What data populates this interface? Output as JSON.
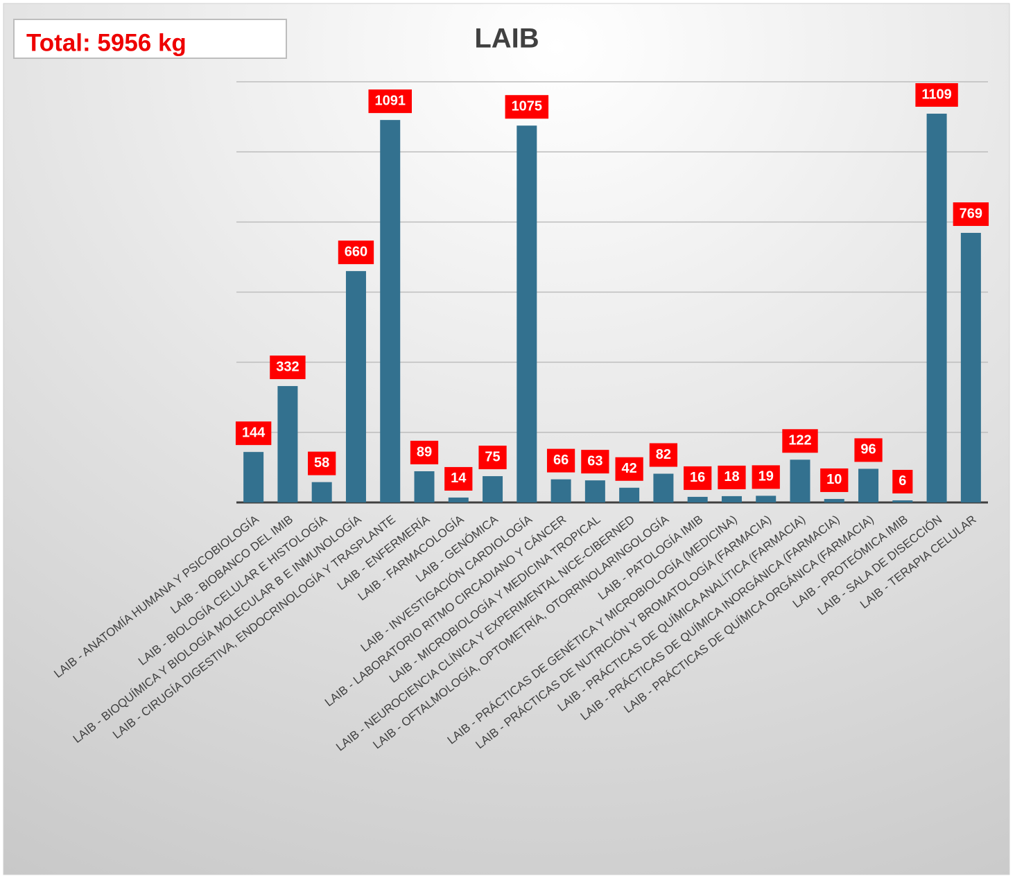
{
  "chart_data": {
    "type": "bar",
    "title": "LAIB",
    "annotation": "Total: 5956 kg",
    "categories": [
      "LAIB - ANATOMÍA HUMANA Y PSICOBIOLOGÍA",
      "LAIB - BIOBANCO DEL IMIB",
      "LAIB - BIOLOGÍA CELULAR E HISTOLOGÍA",
      "LAIB - BIOQUÍMICA Y BIOLOGÍA MOLECULAR B E INMUNOLOGÍA",
      "LAIB - CIRUGÍA DIGESTIVA, ENDOCRINOLOGÍA Y TRASPLANTE",
      "LAIB - ENFERMERÍA",
      "LAIB - FARMACOLOGÍA",
      "LAIB - GENÓMICA",
      "LAIB - INVESTIGACIÓN CARDIOLOGÍA",
      "LAIB - LABORATORIO RITMO CIRCADIANO Y CÁNCER",
      "LAIB - MICROBIOLOGÍA Y MEDICINA TROPICAL",
      "LAIB - NEUROCIENCIA CLÍNICA Y EXPERIMENTAL NICE-CIBERNED",
      "LAIB - OFTALMOLOGÍA, OPTOMETRÍA, OTORRINOLARINGOLOGÍA",
      "LAIB - PATOLOGÍA IMIB",
      "LAIB - PRÁCTICAS DE GENÉTICA Y MICROBIOLOGÍA (MEDICINA)",
      "LAIB - PRÁCTICAS DE NUTRICIÓN Y BROMATOLOGÍA (FARMACIA)",
      "LAIB - PRÁCTICAS DE QUÍMICA ANALÍTICA (FARMACIA)",
      "LAIB - PRÁCTICAS DE QUÍMICA INORGÁNICA (FARMACIA)",
      "LAIB - PRÁCTICAS DE QUÍMICA ORGÁNICA (FARMACIA)",
      "LAIB - PROTEÓMICA IMIB",
      "LAIB - SALA DE DISECCIÓN",
      "LAIB - TERAPIA CELULAR"
    ],
    "values": [
      144,
      332,
      58,
      660,
      1091,
      89,
      14,
      75,
      1075,
      66,
      63,
      42,
      82,
      16,
      18,
      19,
      122,
      10,
      96,
      6,
      1109,
      769
    ],
    "color": "#33718f",
    "label_color": "#ff0000",
    "ylim": [
      0,
      1200
    ],
    "yticks": [
      0,
      200,
      400,
      600,
      800,
      1000,
      1200
    ],
    "grid": true
  }
}
